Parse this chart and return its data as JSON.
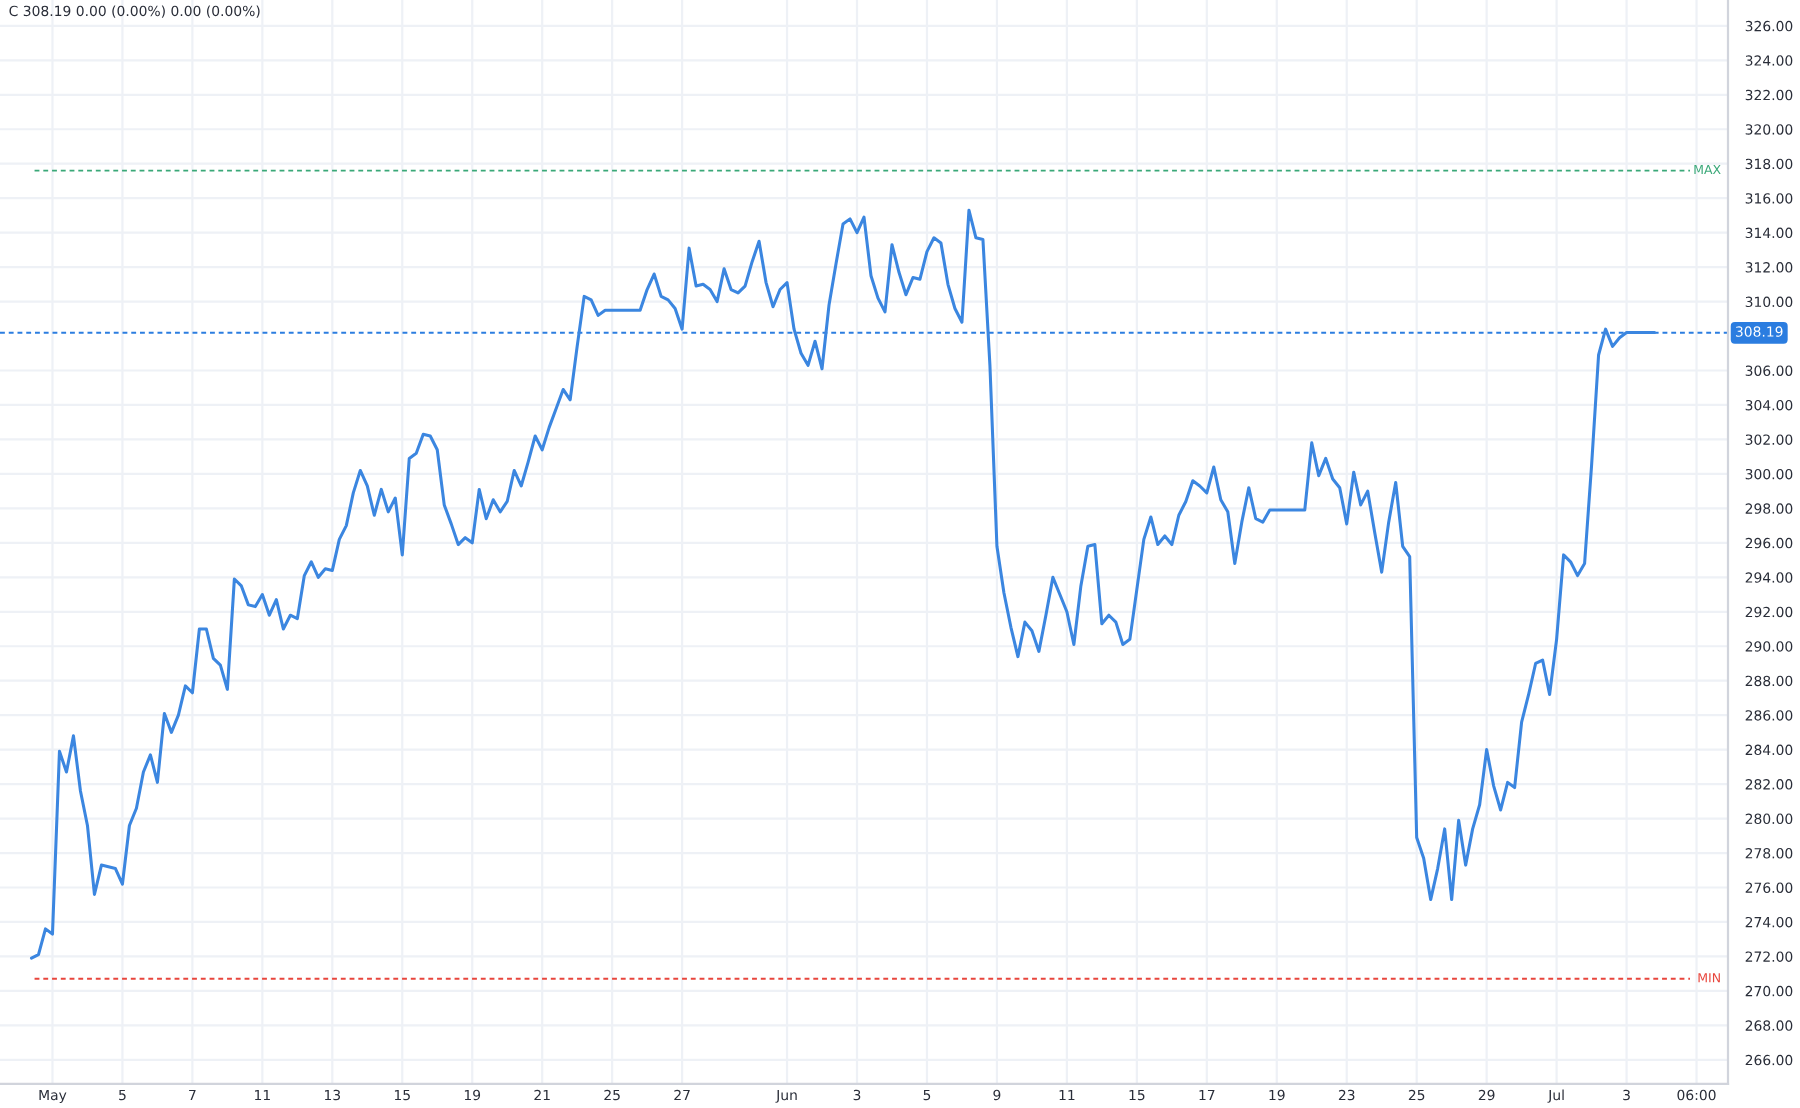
{
  "chart_data": {
    "type": "line",
    "annotations": [
      "C 308.19 0.00 (0.00%) 0.00 (0.00%)"
    ],
    "categories": [
      null,
      null,
      null,
      null,
      null,
      null,
      null,
      "May",
      null,
      null,
      null,
      null,
      null,
      null,
      null,
      null,
      null,
      "5",
      null,
      null,
      null,
      null,
      null,
      null,
      null,
      null,
      null,
      "7",
      null,
      null,
      null,
      null,
      null,
      null,
      null,
      null,
      null,
      "11",
      null,
      null,
      null,
      null,
      null,
      null,
      null,
      null,
      null,
      "13",
      null,
      null,
      null,
      null,
      null,
      null,
      null,
      null,
      null,
      "15",
      null,
      null,
      null,
      null,
      null,
      null,
      null,
      null,
      null,
      "19",
      null,
      null,
      null,
      null,
      null,
      null,
      null,
      null,
      null,
      "21",
      null,
      null,
      null,
      null,
      null,
      null,
      null,
      null,
      null,
      "25",
      null,
      null,
      null,
      null,
      null,
      null,
      null,
      null,
      null,
      "27",
      null,
      null,
      null,
      null,
      null,
      null,
      null,
      null,
      null,
      null,
      null,
      null,
      null,
      null,
      "Jun",
      null,
      null,
      null,
      null,
      null,
      null,
      null,
      null,
      null,
      "3",
      null,
      null,
      null,
      null,
      null,
      null,
      null,
      null,
      null,
      "5",
      null,
      null,
      null,
      null,
      null,
      null,
      null,
      null,
      null,
      "9",
      null,
      null,
      null,
      null,
      null,
      null,
      null,
      null,
      null,
      "11",
      null,
      null,
      null,
      null,
      null,
      null,
      null,
      null,
      null,
      "15",
      null,
      null,
      null,
      null,
      null,
      null,
      null,
      null,
      null,
      "17",
      null,
      null,
      null,
      null,
      null,
      null,
      null,
      null,
      null,
      "19",
      null,
      null,
      null,
      null,
      null,
      null,
      null,
      null,
      null,
      "23",
      null,
      null,
      null,
      null,
      null,
      null,
      null,
      null,
      null,
      "25",
      null,
      null,
      null,
      null,
      null,
      null,
      null,
      null,
      null,
      "29",
      null,
      null,
      null,
      null,
      null,
      null,
      null,
      null,
      null,
      "Jul",
      null,
      null,
      null,
      null,
      null,
      null,
      null,
      null,
      null,
      "3",
      null,
      null,
      null,
      null,
      null,
      null,
      null,
      null,
      null,
      "06:00",
      null,
      null,
      null,
      null
    ],
    "series": [
      {
        "color": "#3b86e0",
        "values": [
          null,
          null,
          null,
          null,
          271.9,
          272.1,
          273.6,
          273.3,
          283.9,
          282.7,
          284.8,
          281.6,
          279.6,
          275.6,
          277.3,
          277.2,
          277.1,
          276.2,
          279.6,
          280.6,
          282.7,
          283.7,
          282.1,
          286.1,
          285.0,
          286.0,
          287.7,
          287.3,
          291.0,
          291.0,
          289.3,
          288.9,
          287.5,
          293.9,
          293.5,
          292.4,
          292.3,
          293.0,
          291.8,
          292.7,
          291.0,
          291.8,
          291.6,
          294.1,
          294.9,
          294.0,
          294.5,
          294.4,
          296.2,
          297.0,
          298.9,
          300.2,
          299.3,
          297.6,
          299.1,
          297.8,
          298.6,
          295.3,
          300.9,
          301.2,
          302.3,
          302.2,
          301.4,
          298.2,
          297.1,
          295.9,
          296.3,
          296.0,
          299.1,
          297.4,
          298.5,
          297.8,
          298.4,
          300.2,
          299.3,
          300.7,
          302.2,
          301.4,
          302.7,
          303.8,
          304.9,
          304.3,
          307.4,
          310.3,
          310.1,
          309.2,
          309.5,
          309.5,
          309.5,
          309.5,
          309.5,
          309.5,
          310.7,
          311.6,
          310.3,
          310.1,
          309.6,
          308.4,
          313.1,
          310.9,
          311.0,
          310.7,
          310.0,
          311.9,
          310.7,
          310.5,
          310.9,
          312.3,
          313.5,
          311.1,
          309.7,
          310.7,
          311.1,
          308.4,
          307.0,
          306.3,
          307.7,
          306.1,
          309.8,
          312.2,
          314.5,
          314.8,
          314.0,
          314.9,
          311.5,
          310.2,
          309.4,
          313.3,
          311.7,
          310.4,
          311.4,
          311.3,
          312.9,
          313.7,
          313.4,
          311.0,
          309.6,
          308.8,
          315.3,
          313.7,
          313.6,
          306.3,
          295.8,
          293.1,
          291.1,
          289.4,
          291.4,
          290.9,
          289.7,
          291.8,
          294.0,
          293.0,
          292.0,
          290.1,
          293.5,
          295.8,
          295.9,
          291.3,
          291.8,
          291.4,
          290.1,
          290.4,
          293.3,
          296.2,
          297.5,
          295.9,
          296.4,
          295.9,
          297.6,
          298.4,
          299.6,
          299.3,
          298.9,
          300.4,
          298.5,
          297.8,
          294.8,
          297.2,
          299.2,
          297.4,
          297.2,
          297.9,
          297.9,
          297.9,
          297.9,
          297.9,
          297.9,
          301.8,
          299.9,
          300.9,
          299.7,
          299.2,
          297.1,
          300.1,
          298.2,
          299.0,
          296.6,
          294.3,
          297.2,
          299.5,
          295.8,
          295.2,
          278.9,
          277.7,
          275.3,
          277.1,
          279.4,
          275.3,
          279.9,
          277.3,
          279.4,
          280.8,
          284.0,
          281.9,
          280.5,
          282.1,
          281.8,
          285.6,
          287.2,
          289.0,
          289.2,
          287.2,
          290.4,
          295.3,
          294.9,
          294.1,
          294.8,
          300.5,
          306.9,
          308.4,
          307.4,
          307.9,
          308.2,
          308.2,
          308.2,
          308.2,
          308.2,
          null,
          null,
          null,
          null,
          null,
          null,
          null,
          null,
          null,
          null
        ]
      }
    ],
    "ylim": [
      264.6,
      327.5
    ],
    "yticks": [
      {
        "value": 266,
        "label": "266.00"
      },
      {
        "value": 268,
        "label": "268.00"
      },
      {
        "value": 270,
        "label": "270.00"
      },
      {
        "value": 272,
        "label": "272.00"
      },
      {
        "value": 274,
        "label": "274.00"
      },
      {
        "value": 276,
        "label": "276.00"
      },
      {
        "value": 278,
        "label": "278.00"
      },
      {
        "value": 280,
        "label": "280.00"
      },
      {
        "value": 282,
        "label": "282.00"
      },
      {
        "value": 284,
        "label": "284.00"
      },
      {
        "value": 286,
        "label": "286.00"
      },
      {
        "value": 288,
        "label": "288.00"
      },
      {
        "value": 290,
        "label": "290.00"
      },
      {
        "value": 292,
        "label": "292.00"
      },
      {
        "value": 294,
        "label": "294.00"
      },
      {
        "value": 296,
        "label": "296.00"
      },
      {
        "value": 298,
        "label": "298.00"
      },
      {
        "value": 300,
        "label": "300.00"
      },
      {
        "value": 302,
        "label": "302.00"
      },
      {
        "value": 304,
        "label": "304.00"
      },
      {
        "value": 306,
        "label": "306.00"
      },
      {
        "value": 310,
        "label": "310.00"
      },
      {
        "value": 312,
        "label": "312.00"
      },
      {
        "value": 314,
        "label": "314.00"
      },
      {
        "value": 316,
        "label": "316.00"
      },
      {
        "value": 318,
        "label": "318.00"
      },
      {
        "value": 320,
        "label": "320.00"
      },
      {
        "value": 322,
        "label": "322.00"
      },
      {
        "value": 324,
        "label": "324.00"
      },
      {
        "value": 326,
        "label": "326.00"
      }
    ],
    "ref_lines": [
      {
        "axis": "y",
        "value": 308.19,
        "label": "308.19",
        "color": "#2b7de0",
        "line_style": "dashed"
      },
      {
        "axis": "y",
        "value": 317.6,
        "label": "MAX",
        "color": "#3aa878",
        "line_style": "dashed"
      },
      {
        "axis": "y",
        "value": 270.7,
        "label": "MIN",
        "color": "#e8453c",
        "line_style": "dashed"
      }
    ],
    "grid": true
  }
}
